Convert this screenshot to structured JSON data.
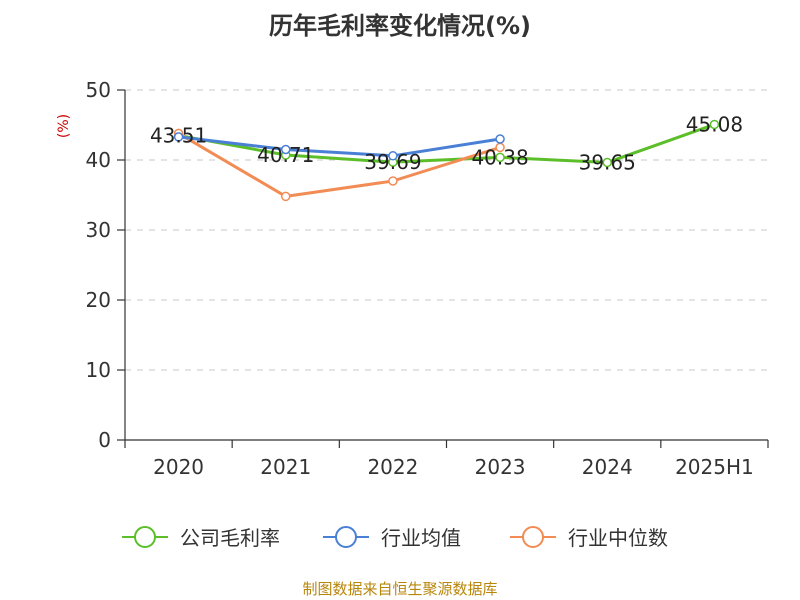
{
  "chart_data": {
    "type": "line",
    "title": "历年毛利率变化情况(%)",
    "ylabel": "(%)",
    "xlabel": "",
    "categories": [
      "2020",
      "2021",
      "2022",
      "2023",
      "2024",
      "2025H1"
    ],
    "ylim": [
      0,
      50
    ],
    "yticks": [
      0,
      10,
      20,
      30,
      40,
      50
    ],
    "grid": true,
    "legend_position": "bottom",
    "series": [
      {
        "name": "公司毛利率",
        "color": "#5cbf2a",
        "values": [
          43.51,
          40.71,
          39.69,
          40.38,
          39.65,
          45.08
        ],
        "labels": [
          "43.51",
          "40.71",
          "39.69",
          "40.38",
          "39.65",
          "45.08"
        ]
      },
      {
        "name": "行业均值",
        "color": "#4a7fd6",
        "values": [
          43.3,
          41.5,
          40.6,
          43.0,
          null,
          null
        ]
      },
      {
        "name": "行业中位数",
        "color": "#f28c55",
        "values": [
          43.8,
          34.8,
          37.0,
          41.8,
          null,
          null
        ]
      }
    ]
  },
  "source": "制图数据来自恒生聚源数据库"
}
